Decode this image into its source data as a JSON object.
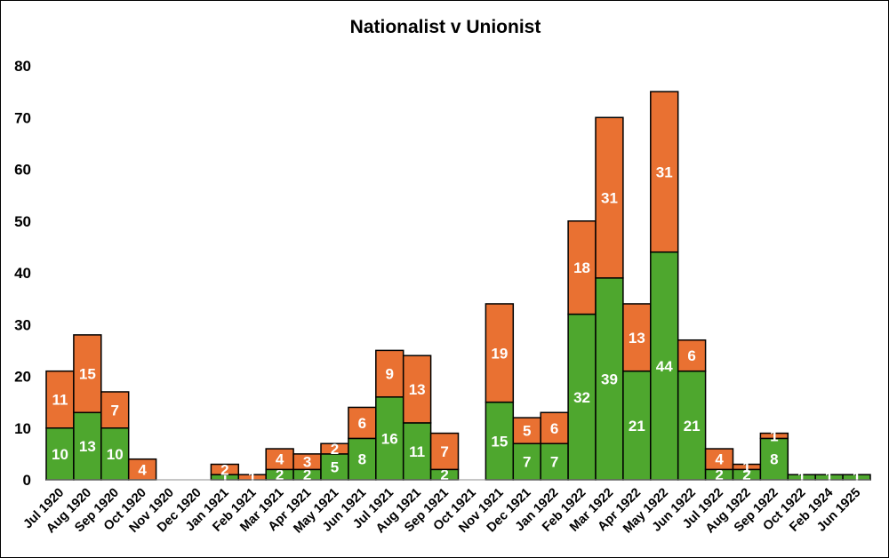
{
  "chart_data": {
    "type": "bar",
    "stacked": true,
    "title": "Nationalist v Unionist",
    "xlabel": "",
    "ylabel": "",
    "ylim": [
      0,
      80
    ],
    "yticks": [
      0,
      10,
      20,
      30,
      40,
      50,
      60,
      70,
      80
    ],
    "grid": false,
    "legend": "none",
    "categories": [
      "Jul 1920",
      "Aug 1920",
      "Sep 1920",
      "Oct 1920",
      "Nov 1920",
      "Dec 1920",
      "Jan 1921",
      "Feb 1921",
      "Mar 1921",
      "Apr 1921",
      "May 1921",
      "Jun 1921",
      "Jul 1921",
      "Aug 1921",
      "Sep 1921",
      "Oct 1921",
      "Nov 1921",
      "Dec 1921",
      "Jan 1922",
      "Feb 1922",
      "Mar 1922",
      "Apr 1922",
      "May 1922",
      "Jun 1922",
      "Jul 1922",
      "Aug 1922",
      "Sep 1922",
      "Oct 1922",
      "Feb 1924",
      "Jun 1925"
    ],
    "series": [
      {
        "color": "#4ea72e",
        "values": [
          10,
          13,
          10,
          0,
          0,
          0,
          1,
          0,
          2,
          2,
          5,
          8,
          16,
          11,
          2,
          0,
          15,
          7,
          7,
          32,
          39,
          21,
          44,
          21,
          2,
          2,
          8,
          1,
          1,
          1
        ]
      },
      {
        "color": "#e97132",
        "values": [
          11,
          15,
          7,
          4,
          0,
          0,
          2,
          1,
          4,
          3,
          2,
          6,
          9,
          13,
          7,
          0,
          19,
          5,
          6,
          18,
          31,
          13,
          31,
          6,
          4,
          1,
          1,
          0,
          0,
          0
        ]
      }
    ]
  }
}
